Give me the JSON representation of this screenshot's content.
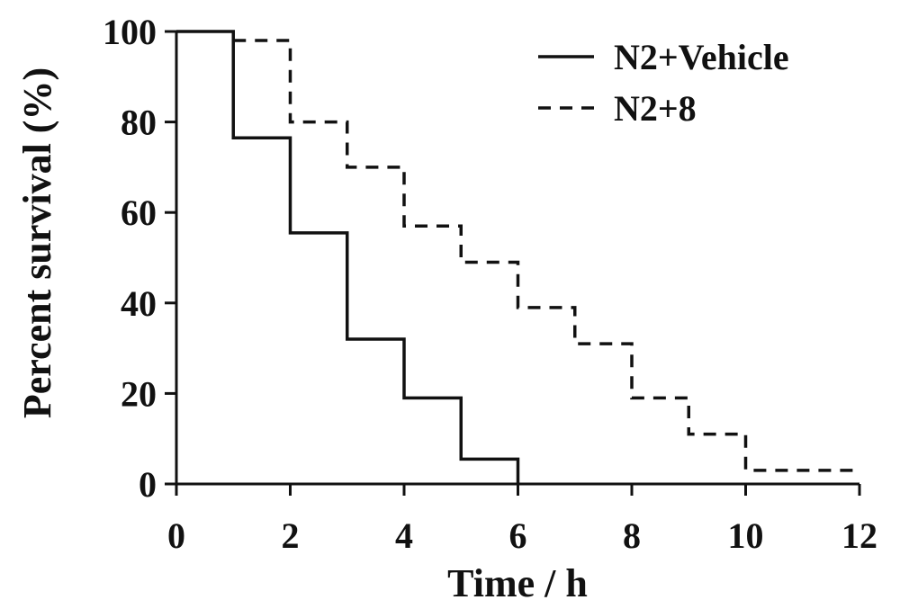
{
  "chart_data": {
    "type": "line",
    "step": true,
    "xlabel": "Time / h",
    "ylabel": "Percent survival (%)",
    "xlim": [
      0,
      12
    ],
    "ylim": [
      0,
      100
    ],
    "xticks": [
      "0",
      "2",
      "4",
      "6",
      "8",
      "10",
      "12"
    ],
    "yticks": [
      "0",
      "20",
      "40",
      "60",
      "80",
      "100"
    ],
    "grid": false,
    "legend_position": "top-right",
    "series": [
      {
        "name": "N2+Vehicle",
        "style": "solid",
        "x": [
          0,
          1,
          2,
          3,
          4,
          5,
          6
        ],
        "y": [
          100,
          76.5,
          55.5,
          32,
          19,
          5.5,
          0
        ]
      },
      {
        "name": "N2+8",
        "style": "dashed",
        "x": [
          1,
          2,
          3,
          4,
          5,
          6,
          7,
          8,
          9,
          10,
          12
        ],
        "y": [
          98,
          80,
          70,
          57,
          49,
          39,
          31,
          19,
          11,
          3,
          3
        ]
      }
    ]
  }
}
